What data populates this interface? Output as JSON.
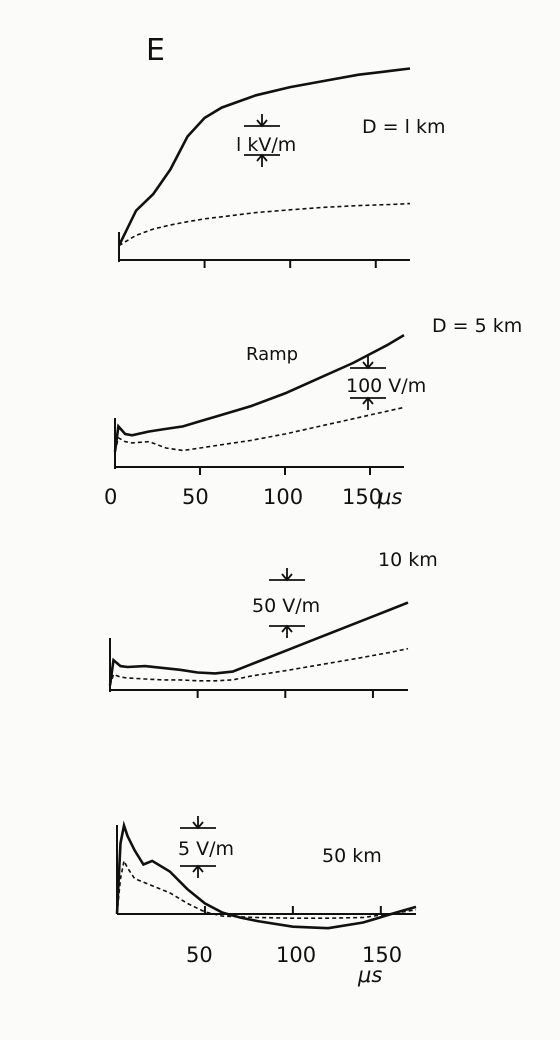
{
  "figure_label": "E",
  "x_tick_labels": [
    "0",
    "50",
    "100",
    "150"
  ],
  "x_unit": "μs",
  "chart_data": [
    {
      "type": "line",
      "distance_label": "D = l km",
      "scale_label": "l kV/m",
      "x": [
        0,
        10,
        20,
        30,
        40,
        50,
        60,
        80,
        100,
        120,
        140,
        160,
        170
      ],
      "xlim": [
        0,
        170
      ],
      "ticks": [
        0,
        50,
        100,
        150
      ],
      "series": [
        {
          "style": "solid",
          "values": [
            0.35,
            1.2,
            1.6,
            2.2,
            3.0,
            3.45,
            3.7,
            4.0,
            4.2,
            4.35,
            4.5,
            4.6,
            4.65
          ]
        },
        {
          "style": "dashed",
          "values": [
            0.35,
            0.6,
            0.75,
            0.85,
            0.93,
            1.0,
            1.05,
            1.15,
            1.22,
            1.28,
            1.32,
            1.35,
            1.37
          ]
        }
      ],
      "ylim": [
        0,
        5.1
      ]
    },
    {
      "type": "line",
      "distance_label": "D = 5 km",
      "annotation": "Ramp",
      "scale_label": "100 V/m",
      "x": [
        0,
        2,
        6,
        10,
        20,
        30,
        40,
        50,
        60,
        80,
        100,
        120,
        140,
        160,
        170
      ],
      "xlim": [
        0,
        170
      ],
      "ticks": [
        0,
        50,
        100,
        150
      ],
      "series": [
        {
          "style": "solid",
          "values": [
            0,
            100,
            70,
            65,
            80,
            90,
            100,
            120,
            140,
            180,
            230,
            290,
            350,
            420,
            460
          ]
        },
        {
          "style": "dashed",
          "values": [
            0,
            55,
            40,
            35,
            40,
            15,
            5,
            15,
            25,
            45,
            70,
            100,
            130,
            160,
            175
          ]
        }
      ],
      "ylim": [
        -60,
        480
      ]
    },
    {
      "type": "line",
      "distance_label": "10 km",
      "scale_label": "50 V/m",
      "x": [
        0,
        2,
        6,
        10,
        20,
        30,
        40,
        50,
        60,
        70,
        80,
        100,
        120,
        140,
        160,
        170
      ],
      "xlim": [
        0,
        170
      ],
      "ticks": [
        0,
        50,
        100,
        150
      ],
      "series": [
        {
          "style": "solid",
          "values": [
            0,
            55,
            42,
            40,
            42,
            38,
            34,
            28,
            26,
            30,
            45,
            75,
            105,
            135,
            165,
            180
          ]
        },
        {
          "style": "dashed",
          "values": [
            0,
            24,
            18,
            16,
            14,
            12,
            12,
            10,
            10,
            12,
            20,
            32,
            45,
            58,
            72,
            80
          ]
        }
      ],
      "ylim": [
        -10,
        190
      ]
    },
    {
      "type": "line",
      "distance_label": "50 km",
      "scale_label": "5 V/m",
      "x": [
        0,
        2,
        4,
        6,
        10,
        15,
        20,
        30,
        40,
        50,
        60,
        70,
        80,
        100,
        120,
        140,
        160,
        170
      ],
      "xlim": [
        0,
        170
      ],
      "ticks": [
        0,
        50,
        100,
        150
      ],
      "series": [
        {
          "style": "solid",
          "values": [
            0,
            10,
            12.5,
            11,
            9,
            7,
            7.5,
            6,
            3.5,
            1.5,
            0.2,
            -0.5,
            -1.0,
            -1.8,
            -2.0,
            -1.2,
            0.3,
            1.0
          ]
        },
        {
          "style": "dashed",
          "values": [
            0,
            5,
            7.5,
            6.5,
            5,
            4.5,
            4,
            3,
            1.5,
            0.3,
            -0.3,
            -0.4,
            -0.5,
            -0.6,
            -0.6,
            -0.5,
            0.2,
            0.6
          ]
        }
      ],
      "ylim": [
        -3,
        13
      ]
    }
  ]
}
